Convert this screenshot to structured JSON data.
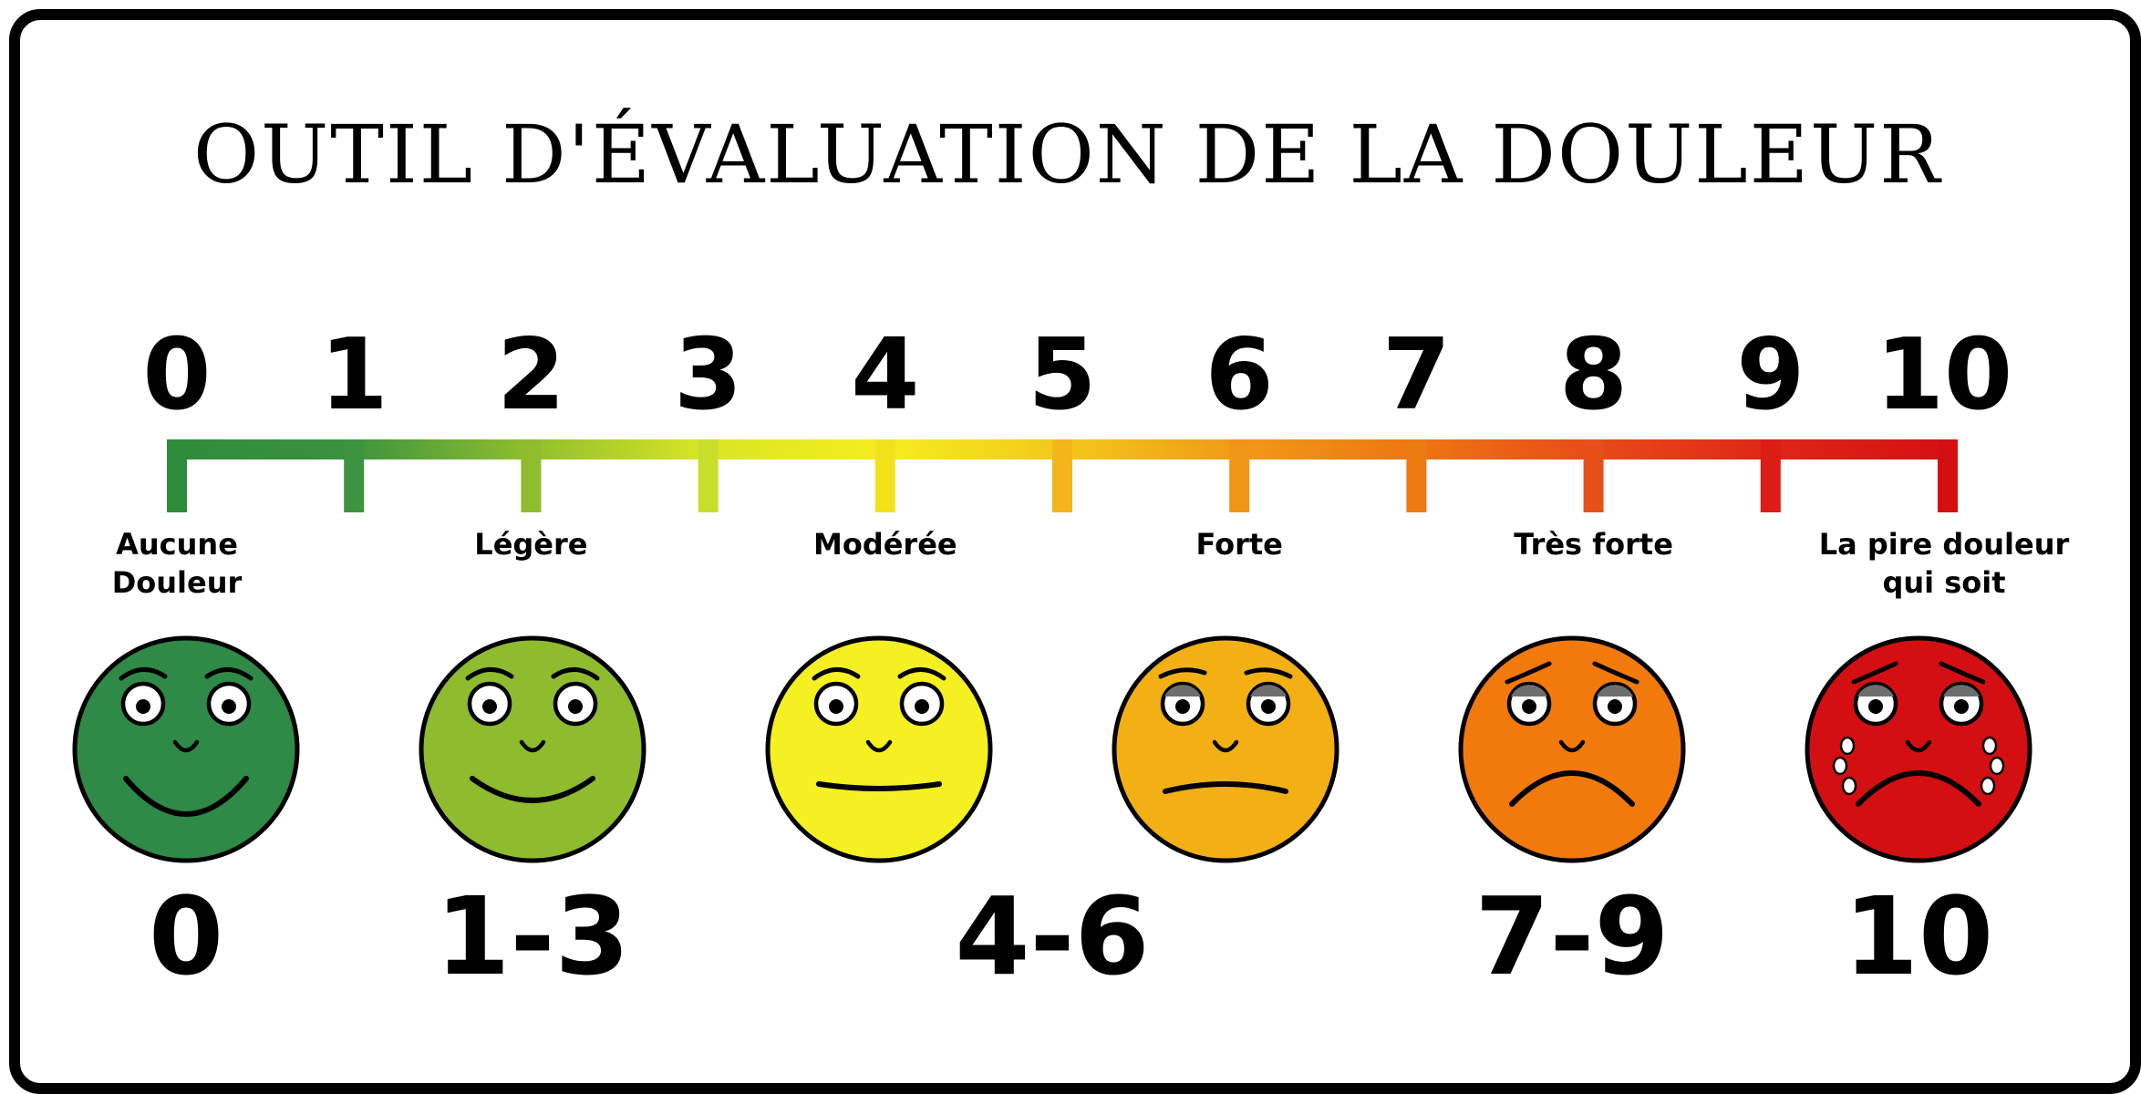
{
  "title": "OUTIL D'ÉVALUATION DE LA DOULEUR",
  "scale": {
    "numbers": [
      "0",
      "1",
      "2",
      "3",
      "4",
      "5",
      "6",
      "7",
      "8",
      "9",
      "10"
    ],
    "tick_colors": [
      "#2e8b3a",
      "#3c9440",
      "#8fbd2e",
      "#c8de2a",
      "#f2e21c",
      "#f2b51a",
      "#f09616",
      "#ee7a12",
      "#e8501a",
      "#dd1c16",
      "#d40f12"
    ],
    "gradient_colors": [
      "#2e8b3a",
      "#3a923f",
      "#8fbd2e",
      "#d8e624",
      "#f4ee1e",
      "#f2c81a",
      "#f09a16",
      "#ee7412",
      "#e84a18",
      "#de2416",
      "#d40f12"
    ]
  },
  "labels": [
    {
      "lines": [
        "Aucune",
        "Douleur"
      ],
      "at": 0
    },
    {
      "lines": [
        "Légère"
      ],
      "at": 2
    },
    {
      "lines": [
        "Modérée"
      ],
      "at": 4
    },
    {
      "lines": [
        "Forte"
      ],
      "at": 6
    },
    {
      "lines": [
        "Très forte"
      ],
      "at": 8
    },
    {
      "lines": [
        "La pire douleur",
        "qui soit"
      ],
      "at": 10
    }
  ],
  "faces": [
    {
      "range": "0",
      "color": "#2e8a46",
      "mood": "happy",
      "tears": false
    },
    {
      "range": "1-3",
      "color": "#8fbb2e",
      "mood": "content",
      "tears": false
    },
    {
      "range": "4-6",
      "color": "#f4f022",
      "mood": "neutral",
      "tears": false
    },
    {
      "range": "7-9",
      "color": "#f2b015",
      "mood": "uneasy",
      "tears": false
    },
    {
      "range": "7-9",
      "color": "#f27a0c",
      "mood": "sad",
      "tears": false
    },
    {
      "range": "10",
      "color": "#d40f12",
      "mood": "crying",
      "tears": true
    }
  ],
  "range_labels": [
    "0",
    "1-3",
    "4-6",
    "7-9",
    "10"
  ]
}
